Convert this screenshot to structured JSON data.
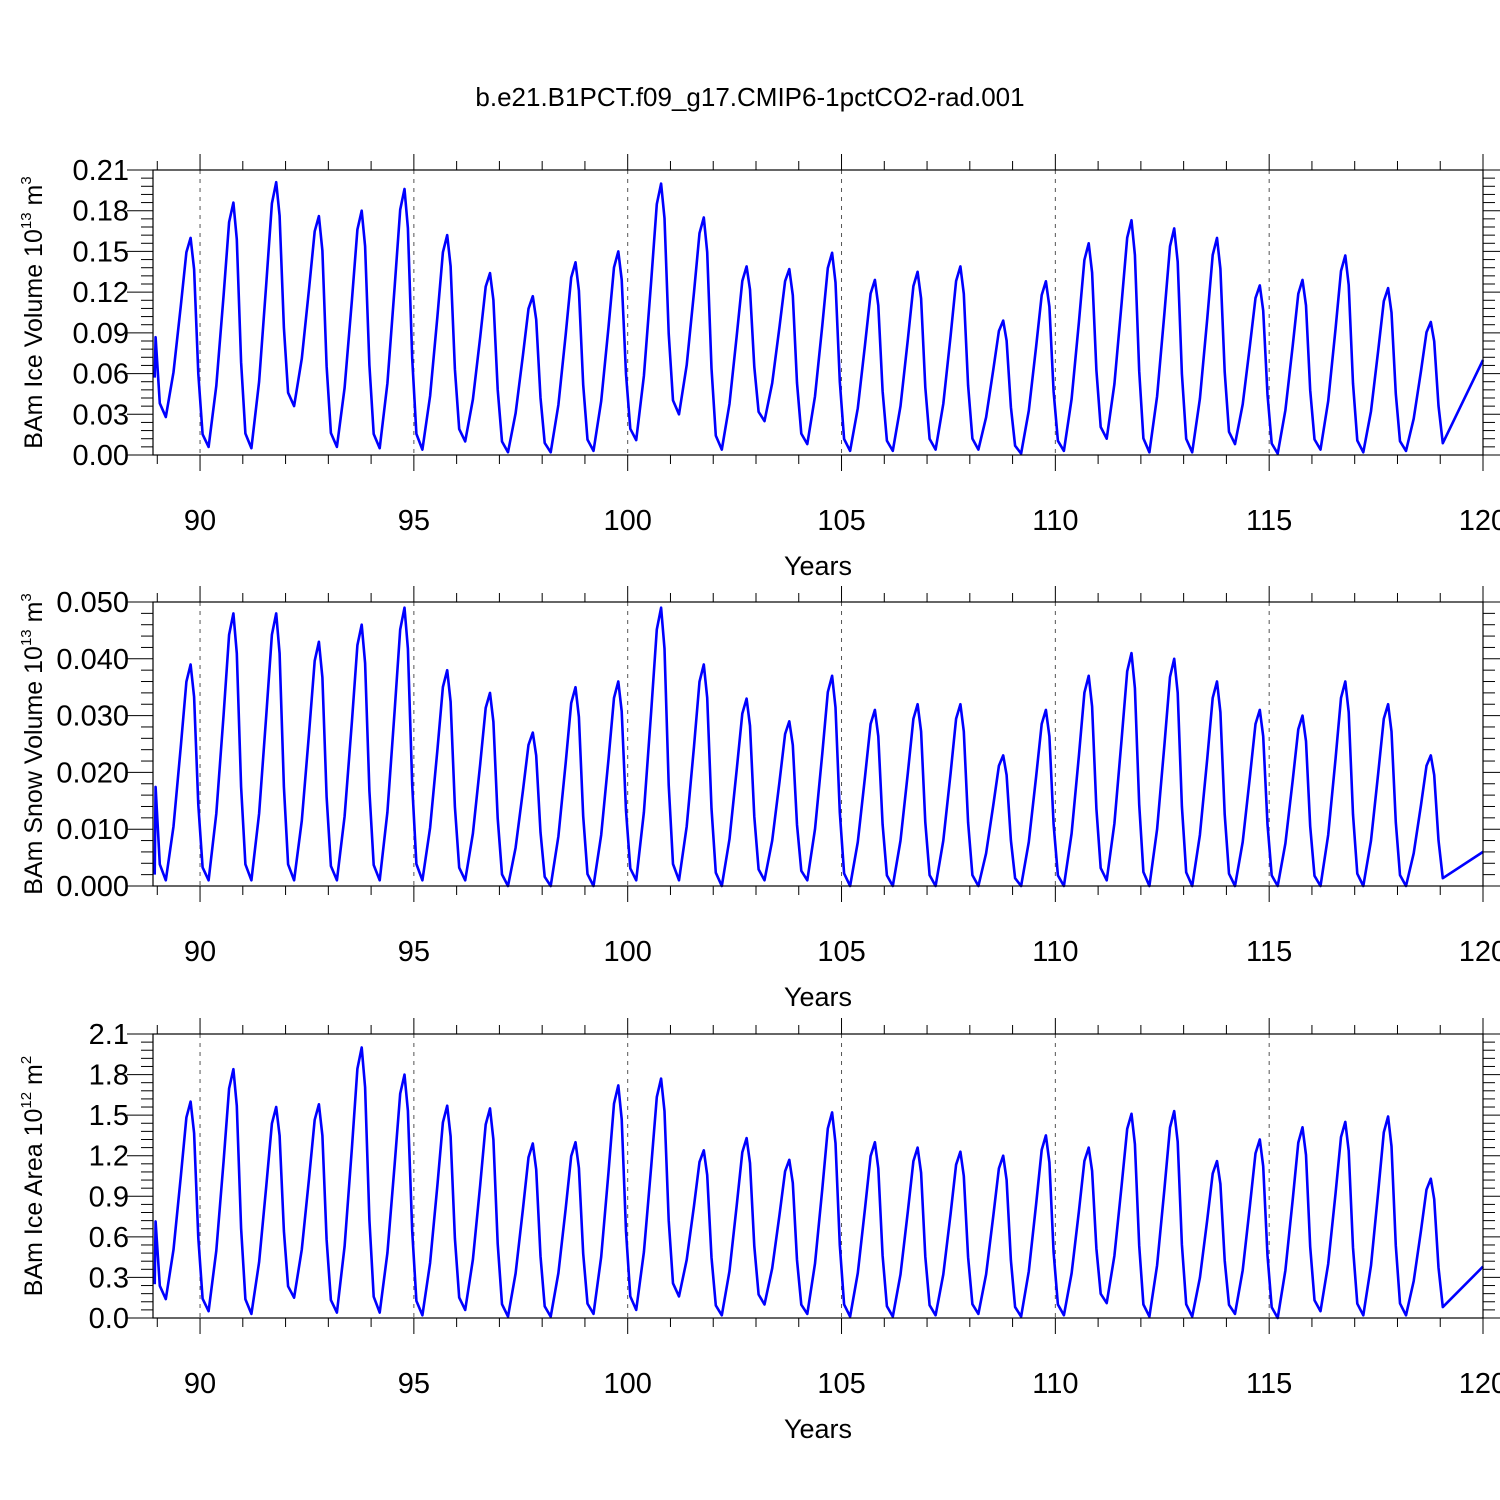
{
  "title": "b.e21.B1PCT.f09_g17.CMIP6-1pctCO2-rad.001",
  "chart_data": [
    {
      "type": "line",
      "ylabel": {
        "main": "BAm Ice Volume 10",
        "sup1": "13",
        "mid": " m",
        "sup2": "3"
      },
      "xlabel": "Years",
      "xlim": [
        88.9,
        120
      ],
      "ylim": [
        0,
        0.21
      ],
      "yticks": [
        "0.00",
        "0.03",
        "0.06",
        "0.09",
        "0.12",
        "0.15",
        "0.18",
        "0.21"
      ],
      "xticks": [
        "90",
        "95",
        "100",
        "105",
        "110",
        "115",
        "120"
      ],
      "ref_years": [
        90,
        95,
        100,
        105,
        110,
        115
      ],
      "series": [
        {
          "color": "#0000ff",
          "annual_max": [
            0.196,
            0.16,
            0.186,
            0.201,
            0.176,
            0.18,
            0.196,
            0.162,
            0.134,
            0.117,
            0.142,
            0.15,
            0.2,
            0.175,
            0.139,
            0.137,
            0.149,
            0.129,
            0.135,
            0.139,
            0.099,
            0.128,
            0.156,
            0.173,
            0.167,
            0.16,
            0.125,
            0.129,
            0.147,
            0.123,
            0.098
          ],
          "annual_min": [
            0.015,
            0.028,
            0.006,
            0.005,
            0.036,
            0.006,
            0.005,
            0.004,
            0.01,
            0.002,
            0.002,
            0.003,
            0.011,
            0.03,
            0.004,
            0.025,
            0.008,
            0.003,
            0.003,
            0.004,
            0.004,
            0.001,
            0.003,
            0.012,
            0.002,
            0.002,
            0.008,
            0.001,
            0.004,
            0.002,
            0.003
          ],
          "start_value": 0.057,
          "end_value": 0.07
        }
      ]
    },
    {
      "type": "line",
      "ylabel": {
        "main": "BAm Snow Volume 10",
        "sup1": "13",
        "mid": " m",
        "sup2": "3"
      },
      "xlabel": "Years",
      "xlim": [
        88.9,
        120
      ],
      "ylim": [
        0,
        0.05
      ],
      "yticks": [
        "0.000",
        "0.010",
        "0.020",
        "0.030",
        "0.040",
        "0.050"
      ],
      "xticks": [
        "90",
        "95",
        "100",
        "105",
        "110",
        "115",
        "120"
      ],
      "ref_years": [
        90,
        95,
        100,
        105,
        110,
        115
      ],
      "series": [
        {
          "color": "#0000ff",
          "annual_max": [
            0.048,
            0.039,
            0.048,
            0.048,
            0.043,
            0.046,
            0.049,
            0.038,
            0.034,
            0.027,
            0.035,
            0.036,
            0.049,
            0.039,
            0.033,
            0.029,
            0.037,
            0.031,
            0.032,
            0.032,
            0.023,
            0.031,
            0.037,
            0.041,
            0.04,
            0.036,
            0.031,
            0.03,
            0.036,
            0.032,
            0.023
          ],
          "annual_min": [
            0.001,
            0.001,
            0.001,
            0.001,
            0.001,
            0.001,
            0.001,
            0.001,
            0.001,
            0.0,
            0.0,
            0.0,
            0.001,
            0.001,
            0.0,
            0.001,
            0.001,
            0.0,
            0.0,
            0.0,
            0.0,
            0.0,
            0.0,
            0.001,
            0.0,
            0.0,
            0.0,
            0.0,
            0.0,
            0.0,
            0.0
          ],
          "start_value": 0.002,
          "end_value": 0.006
        }
      ]
    },
    {
      "type": "line",
      "ylabel": {
        "main": "BAm Ice Area 10",
        "sup1": "12",
        "mid": " m",
        "sup2": "2"
      },
      "xlabel": "Years",
      "xlim": [
        88.9,
        120
      ],
      "ylim": [
        0,
        2.1
      ],
      "yticks": [
        "0.0",
        "0.3",
        "0.6",
        "0.9",
        "1.2",
        "1.5",
        "1.8",
        "2.1"
      ],
      "xticks": [
        "90",
        "95",
        "100",
        "105",
        "110",
        "115",
        "120"
      ],
      "ref_years": [
        90,
        95,
        100,
        105,
        110,
        115
      ],
      "series": [
        {
          "color": "#0000ff",
          "annual_max": [
            1.78,
            1.6,
            1.84,
            1.56,
            1.58,
            2.0,
            1.8,
            1.57,
            1.55,
            1.29,
            1.3,
            1.72,
            1.77,
            1.24,
            1.33,
            1.17,
            1.52,
            1.3,
            1.26,
            1.23,
            1.2,
            1.35,
            1.26,
            1.51,
            1.53,
            1.16,
            1.32,
            1.41,
            1.45,
            1.49,
            1.03
          ],
          "annual_min": [
            0.08,
            0.14,
            0.05,
            0.03,
            0.15,
            0.04,
            0.04,
            0.02,
            0.06,
            0.01,
            0.01,
            0.03,
            0.06,
            0.16,
            0.02,
            0.1,
            0.03,
            0.01,
            0.01,
            0.02,
            0.03,
            0.01,
            0.02,
            0.11,
            0.01,
            0.01,
            0.03,
            0.0,
            0.05,
            0.02,
            0.02
          ],
          "start_value": 0.25,
          "end_value": 0.38
        }
      ]
    }
  ]
}
